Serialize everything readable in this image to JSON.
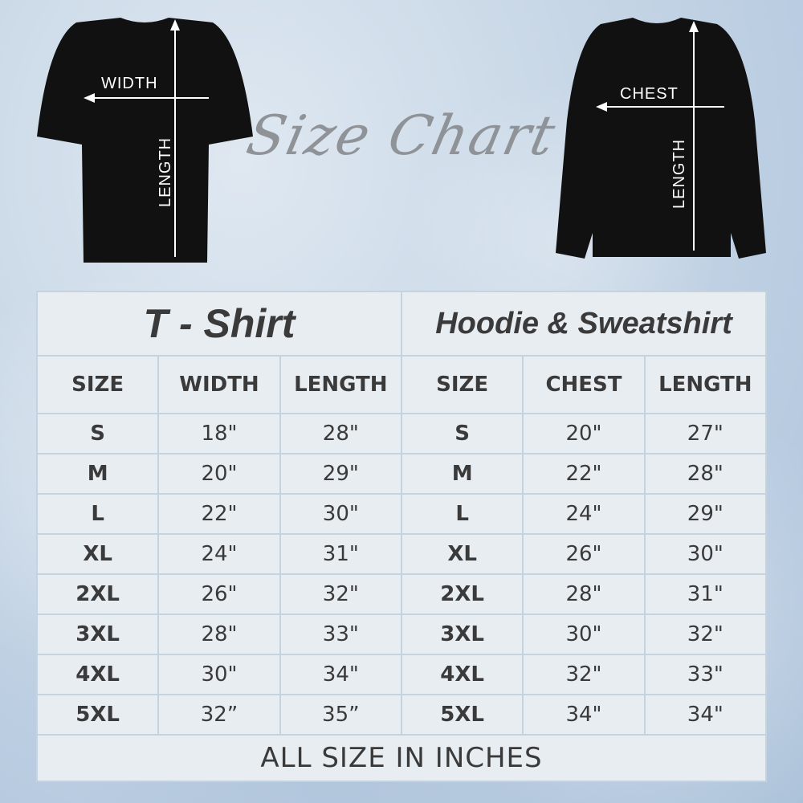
{
  "title": "Size Chart",
  "tshirt_image": {
    "width_label": "WIDTH",
    "length_label": "LENGTH"
  },
  "hoodie_image": {
    "chest_label": "CHEST",
    "length_label": "LENGTH"
  },
  "table": {
    "tshirt_title": "T - Shirt",
    "hoodie_title": "Hoodie & Sweatshirt",
    "tshirt_headers": [
      "SIZE",
      "WIDTH",
      "LENGTH"
    ],
    "hoodie_headers": [
      "SIZE",
      "CHEST",
      "LENGTH"
    ],
    "rows": [
      [
        "S",
        "18\"",
        "28\"",
        "S",
        "20\"",
        "27\""
      ],
      [
        "M",
        "20\"",
        "29\"",
        "M",
        "22\"",
        "28\""
      ],
      [
        "L",
        "22\"",
        "30\"",
        "L",
        "24\"",
        "29\""
      ],
      [
        "XL",
        "24\"",
        "31\"",
        "XL",
        "26\"",
        "30\""
      ],
      [
        "2XL",
        "26\"",
        "32\"",
        "2XL",
        "28\"",
        "31\""
      ],
      [
        "3XL",
        "28\"",
        "33\"",
        "3XL",
        "30\"",
        "32\""
      ],
      [
        "4XL",
        "30\"",
        "34\"",
        "4XL",
        "32\"",
        "33\""
      ],
      [
        "5XL",
        "32”",
        "35”",
        "5XL",
        "34\"",
        "34\""
      ]
    ],
    "footer": "ALL SIZE IN INCHES"
  }
}
